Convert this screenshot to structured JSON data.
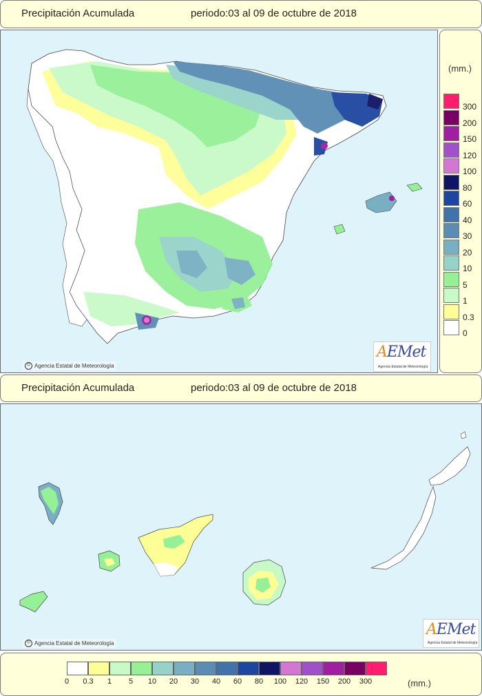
{
  "header_top": {
    "title": "Precipitación Acumulada",
    "period": "periodo:03 al 09 de octubre de 2018"
  },
  "header_mid": {
    "title": "Precipitación Acumulada",
    "period": "periodo:03 al 09 de octubre de 2018"
  },
  "copyright_text": "Agencia Estatal de Meteorología",
  "logo": {
    "name": "AEMet",
    "subtitle": "Agencia Estatal de Meteorología"
  },
  "legend": {
    "unit": "(mm.)",
    "classes": [
      {
        "label": "0",
        "color": "#ffffff"
      },
      {
        "label": "0.3",
        "color": "#fefe96"
      },
      {
        "label": "1",
        "color": "#c8fac8"
      },
      {
        "label": "5",
        "color": "#96f096"
      },
      {
        "label": "10",
        "color": "#96d2c8"
      },
      {
        "label": "20",
        "color": "#78afc3"
      },
      {
        "label": "30",
        "color": "#5a8cb4"
      },
      {
        "label": "40",
        "color": "#4173aa"
      },
      {
        "label": "60",
        "color": "#1e46a0"
      },
      {
        "label": "80",
        "color": "#0f1464"
      },
      {
        "label": "100",
        "color": "#d278d2"
      },
      {
        "label": "120",
        "color": "#a050c8"
      },
      {
        "label": "150",
        "color": "#a01ea0"
      },
      {
        "label": "200",
        "color": "#780064"
      },
      {
        "label": "300",
        "color": "#ff1e6e"
      }
    ]
  },
  "colors": {
    "sea": "#dff3fb",
    "panel": "#ffffd9",
    "border": "#7a7a7a"
  }
}
